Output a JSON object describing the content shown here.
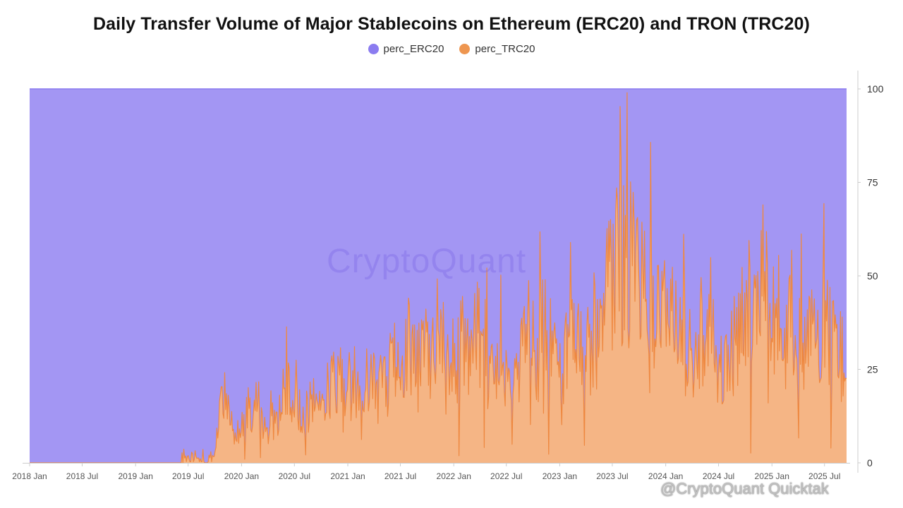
{
  "chart_data": {
    "type": "area",
    "title": "Daily Transfer Volume of Major Stablecoins on Ethereum (ERC20) and TRON (TRC20)",
    "stacked": true,
    "percent_stacked": true,
    "x_tick_labels": [
      "2018 Jan",
      "2018 Jul",
      "2019 Jan",
      "2019 Jul",
      "2020 Jan",
      "2020 Jul",
      "2021 Jan",
      "2021 Jul",
      "2022 Jan",
      "2022 Jul",
      "2023 Jan",
      "2023 Jul",
      "2024 Jan",
      "2024 Jul",
      "2025 Jan",
      "2025 Jul"
    ],
    "x_range": [
      "2018-01-01",
      "2025-09-15"
    ],
    "y_tick_labels": [
      "0",
      "25",
      "50",
      "75",
      "100"
    ],
    "ylim": [
      0,
      100
    ],
    "y_axis_side": "right",
    "legend_position": "top-center",
    "series": [
      {
        "name": "perc_ERC20",
        "color": "#8b7cf0",
        "fill_color": "#a396f3"
      },
      {
        "name": "perc_TRC20",
        "color": "#ee8840",
        "fill_color": "#f5b585"
      }
    ],
    "trc20_perc_x": [
      "2018-01-01",
      "2019-06-01",
      "2019-07-01",
      "2019-08-01",
      "2019-09-01",
      "2019-10-01",
      "2019-11-01",
      "2019-12-01",
      "2020-01-01",
      "2020-02-01",
      "2020-03-01",
      "2020-04-01",
      "2020-05-01",
      "2020-06-01",
      "2020-07-01",
      "2020-08-01",
      "2020-09-01",
      "2020-10-01",
      "2020-11-01",
      "2020-12-01",
      "2021-01-01",
      "2021-02-01",
      "2021-03-01",
      "2021-04-01",
      "2021-05-01",
      "2021-06-01",
      "2021-07-01",
      "2021-08-01",
      "2021-09-01",
      "2021-10-01",
      "2021-11-01",
      "2021-12-01",
      "2022-01-01",
      "2022-02-01",
      "2022-03-01",
      "2022-04-01",
      "2022-05-01",
      "2022-06-01",
      "2022-07-01",
      "2022-08-01",
      "2022-09-01",
      "2022-10-01",
      "2022-11-01",
      "2022-12-01",
      "2023-01-01",
      "2023-02-01",
      "2023-03-01",
      "2023-04-01",
      "2023-05-01",
      "2023-06-01",
      "2023-07-01",
      "2023-08-01",
      "2023-09-01",
      "2023-10-01",
      "2023-11-01",
      "2023-12-01",
      "2024-01-01",
      "2024-02-01",
      "2024-03-01",
      "2024-04-01",
      "2024-05-01",
      "2024-06-01",
      "2024-07-01",
      "2024-08-01",
      "2024-09-01",
      "2024-10-01",
      "2024-11-01",
      "2024-12-01",
      "2025-01-01",
      "2025-02-01",
      "2025-03-01",
      "2025-04-01",
      "2025-05-01",
      "2025-06-01",
      "2025-07-01",
      "2025-08-01",
      "2025-09-15"
    ],
    "trc20_perc_y": [
      0,
      0,
      1,
      2,
      0,
      3,
      20,
      8,
      10,
      14,
      11,
      9,
      12,
      20,
      15,
      13,
      16,
      18,
      20,
      24,
      22,
      17,
      21,
      24,
      26,
      25,
      28,
      32,
      30,
      29,
      28,
      30,
      27,
      31,
      28,
      36,
      24,
      29,
      25,
      27,
      33,
      22,
      35,
      26,
      27,
      30,
      34,
      29,
      33,
      44,
      49,
      57,
      52,
      48,
      45,
      44,
      40,
      35,
      33,
      30,
      37,
      32,
      25,
      28,
      34,
      42,
      40,
      48,
      42,
      37,
      36,
      32,
      30,
      34,
      35,
      31,
      28
    ]
  },
  "watermark": {
    "center_text": "CryptoQuant",
    "corner_text": "@CryptoQuant Quicktak"
  }
}
